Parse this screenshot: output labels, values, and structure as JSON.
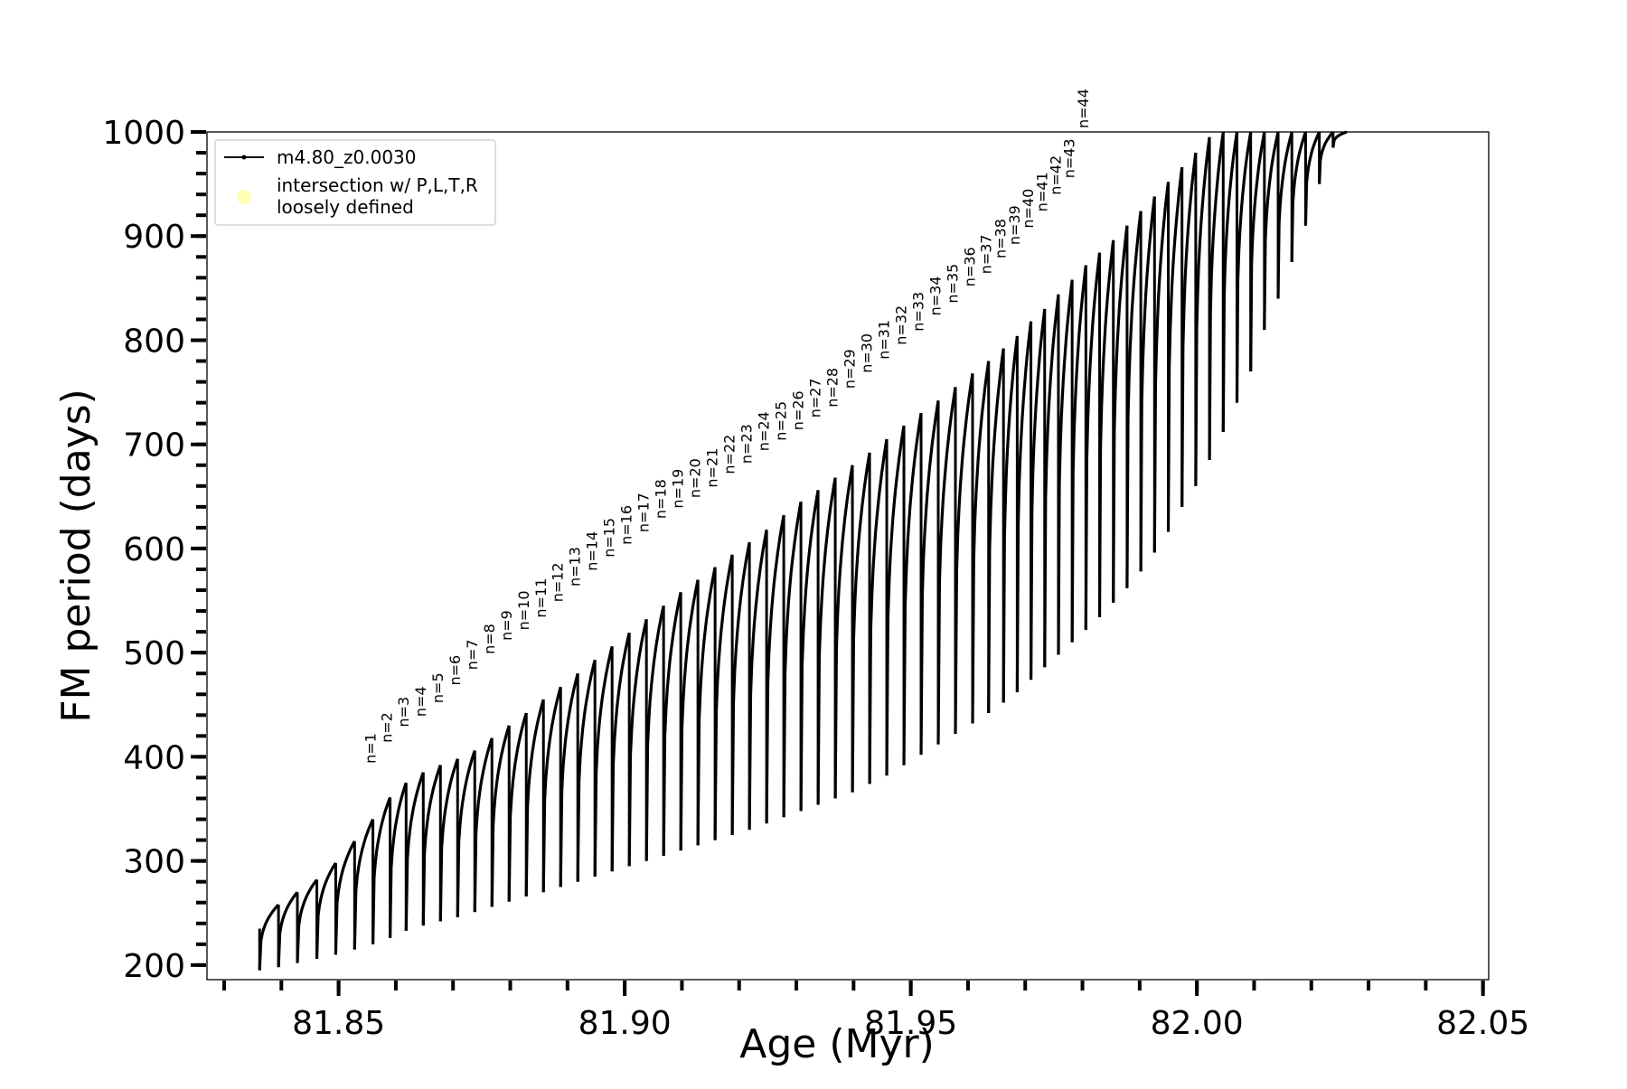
{
  "chart_data": {
    "type": "line",
    "xlabel": "Age (Myr)",
    "ylabel": "FM period (days)",
    "xlim": [
      81.827,
      82.051
    ],
    "ylim": [
      186,
      1000
    ],
    "x_ticks": [
      81.85,
      81.9,
      81.95,
      82.0,
      82.05
    ],
    "x_tick_labels": [
      "81.85",
      "81.90",
      "81.95",
      "82.00",
      "82.05"
    ],
    "y_ticks": [
      200,
      300,
      400,
      500,
      600,
      700,
      800,
      900,
      1000
    ],
    "y_tick_labels": [
      "200",
      "300",
      "400",
      "500",
      "600",
      "700",
      "800",
      "900",
      "1000"
    ],
    "grid": false,
    "legend_position": "top-left",
    "legend": [
      {
        "label": "m4.80_z0.0030",
        "style": "line-with-markers",
        "color": "#000000"
      },
      {
        "label": "intersection w/ P,L,T,R\nloosely defined",
        "style": "marker",
        "color": "#ffffb3"
      }
    ],
    "colors": {
      "series": "#000000",
      "intersection": "#ffffb3",
      "axes": "#000000"
    },
    "series": [
      {
        "name": "m4.80_z0.0030",
        "cycles": {
          "start_ages": [
            81.8362,
            81.8395,
            81.8428,
            81.8462,
            81.8495,
            81.8528,
            81.856,
            81.859,
            81.8618,
            81.8648,
            81.8678,
            81.8708,
            81.8738,
            81.8768,
            81.8798,
            81.8828,
            81.8858,
            81.8888,
            81.8918,
            81.8948,
            81.8978,
            81.9008,
            81.9038,
            81.9068,
            81.9098,
            81.9128,
            81.9158,
            81.9188,
            81.9218,
            81.9248,
            81.9278,
            81.9308,
            81.9338,
            81.9368,
            81.9398,
            81.9428,
            81.9458,
            81.9488,
            81.9518,
            81.9548,
            81.9578,
            81.9608,
            81.9636,
            81.9662,
            81.9686,
            81.971,
            81.9734,
            81.9758,
            81.9782,
            81.9806,
            81.983,
            81.9854,
            81.9878,
            81.9902,
            81.9926,
            81.995,
            81.9974,
            81.9998,
            82.0022,
            82.0046,
            82.007,
            82.0094,
            82.0118,
            82.0142,
            82.0166,
            82.019,
            82.0214,
            82.0238
          ],
          "min_period_days": [
            195,
            198,
            202,
            206,
            210,
            215,
            220,
            226,
            233,
            238,
            242,
            246,
            251,
            256,
            261,
            266,
            270,
            275,
            280,
            285,
            290,
            295,
            300,
            305,
            310,
            315,
            320,
            325,
            330,
            336,
            342,
            348,
            354,
            360,
            366,
            374,
            382,
            392,
            402,
            412,
            422,
            432,
            442,
            452,
            462,
            474,
            486,
            498,
            510,
            522,
            534,
            548,
            562,
            578,
            596,
            616,
            640,
            660,
            685,
            712,
            740,
            770,
            810,
            840,
            875,
            910,
            950,
            985
          ],
          "max_period_days": [
            258,
            270,
            282,
            298,
            319,
            340,
            361,
            375,
            385,
            392,
            398,
            406,
            418,
            430,
            442,
            455,
            467,
            480,
            493,
            506,
            519,
            532,
            545,
            558,
            570,
            582,
            594,
            606,
            618,
            632,
            645,
            656,
            668,
            680,
            692,
            705,
            718,
            730,
            742,
            755,
            768,
            780,
            792,
            804,
            818,
            830,
            844,
            858,
            872,
            884,
            896,
            910,
            924,
            938,
            952,
            966,
            980,
            995,
            1000,
            1000,
            1000,
            1000,
            1000,
            1000,
            1000,
            1000,
            1000,
            1000
          ]
        }
      }
    ],
    "annotations": {
      "labels": [
        "n=1",
        "n=2",
        "n=3",
        "n=4",
        "n=5",
        "n=6",
        "n=7",
        "n=8",
        "n=9",
        "n=10",
        "n=11",
        "n=12",
        "n=13",
        "n=14",
        "n=15",
        "n=16",
        "n=17",
        "n=18",
        "n=19",
        "n=20",
        "n=21",
        "n=22",
        "n=23",
        "n=24",
        "n=25",
        "n=26",
        "n=27",
        "n=28",
        "n=29",
        "n=30",
        "n=31",
        "n=32",
        "n=33",
        "n=34",
        "n=35",
        "n=36",
        "n=37",
        "n=38",
        "n=39",
        "n=40",
        "n=41",
        "n=42",
        "n=43",
        "n=44"
      ],
      "ages": [
        81.8565,
        81.8593,
        81.8622,
        81.8652,
        81.8682,
        81.8712,
        81.8742,
        81.8772,
        81.8802,
        81.8832,
        81.8862,
        81.8892,
        81.8922,
        81.8952,
        81.8982,
        81.9012,
        81.9042,
        81.9072,
        81.9102,
        81.9132,
        81.9162,
        81.9192,
        81.9222,
        81.9252,
        81.9282,
        81.9312,
        81.9342,
        81.9372,
        81.9402,
        81.9432,
        81.9462,
        81.9492,
        81.9522,
        81.9552,
        81.9582,
        81.9612,
        81.964,
        81.9666,
        81.969,
        81.9714,
        81.9738,
        81.9762,
        81.9786,
        81.981
      ],
      "periods_days": [
        390,
        410,
        425,
        435,
        448,
        465,
        480,
        495,
        508,
        518,
        530,
        545,
        560,
        575,
        588,
        600,
        612,
        625,
        635,
        645,
        655,
        668,
        678,
        690,
        700,
        710,
        722,
        732,
        750,
        765,
        778,
        792,
        805,
        820,
        832,
        848,
        860,
        875,
        888,
        904,
        920,
        936,
        952,
        1000
      ]
    }
  }
}
